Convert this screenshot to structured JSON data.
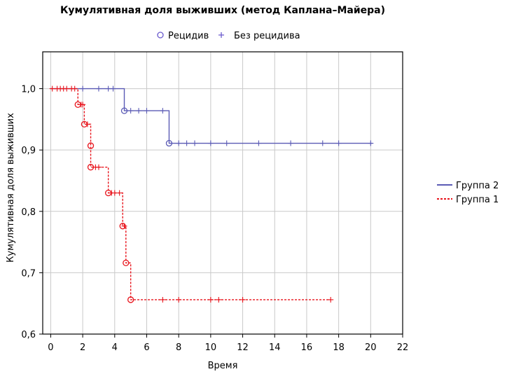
{
  "chart_data": {
    "type": "line",
    "step": true,
    "title": "Кумулятивная доля выживших (метод Каплана–Майера)",
    "xlabel": "Время",
    "ylabel": "Кумулятивная доля выживших",
    "xlim": [
      -0.5,
      22
    ],
    "ylim": [
      0.6,
      1.06
    ],
    "xticks": [
      0,
      2,
      4,
      6,
      8,
      10,
      12,
      14,
      16,
      18,
      20,
      22
    ],
    "xtick_labels": [
      "0",
      "2",
      "4",
      "6",
      "8",
      "10",
      "12",
      "14",
      "16",
      "18",
      "20",
      "22"
    ],
    "yticks": [
      0.6,
      0.7,
      0.8,
      0.9,
      1.0
    ],
    "ytick_labels": [
      "0,6",
      "0,7",
      "0,8",
      "0,9",
      "1,0"
    ],
    "grid": true,
    "marker_legend": {
      "position": "top",
      "items": [
        {
          "label": "Рецидив",
          "marker": "circle",
          "color": "#6a5acd"
        },
        {
          "label": "Без рецидива",
          "marker": "plus",
          "color": "#6a5acd"
        }
      ]
    },
    "series_legend_position": "right",
    "series": [
      {
        "name": "Группа 2",
        "color": "#5b5bb5",
        "dash": "solid",
        "steps": [
          [
            0,
            1.0
          ],
          [
            4.6,
            0.964
          ],
          [
            7.4,
            0.911
          ],
          [
            20.1,
            0.911
          ]
        ],
        "events": [
          [
            4.6,
            0.964
          ],
          [
            7.4,
            0.911
          ]
        ],
        "censored": [
          [
            2.0,
            1.0
          ],
          [
            3.0,
            1.0
          ],
          [
            3.6,
            1.0
          ],
          [
            3.9,
            1.0
          ],
          [
            5.0,
            0.964
          ],
          [
            5.5,
            0.964
          ],
          [
            6.0,
            0.964
          ],
          [
            7.0,
            0.964
          ],
          [
            8.0,
            0.911
          ],
          [
            8.5,
            0.911
          ],
          [
            9.0,
            0.911
          ],
          [
            10.0,
            0.911
          ],
          [
            11.0,
            0.911
          ],
          [
            13.0,
            0.911
          ],
          [
            15.0,
            0.911
          ],
          [
            17.0,
            0.911
          ],
          [
            18.0,
            0.911
          ],
          [
            20.0,
            0.911
          ]
        ]
      },
      {
        "name": "Группа 1",
        "color": "#e8141c",
        "dash": "dashed",
        "steps": [
          [
            0,
            1.0
          ],
          [
            1.7,
            0.974
          ],
          [
            2.1,
            0.942
          ],
          [
            2.5,
            0.907
          ],
          [
            2.5,
            0.872
          ],
          [
            3.6,
            0.83
          ],
          [
            4.5,
            0.776
          ],
          [
            4.7,
            0.716
          ],
          [
            5.0,
            0.656
          ],
          [
            17.5,
            0.656
          ]
        ],
        "events": [
          [
            1.7,
            0.974
          ],
          [
            2.1,
            0.942
          ],
          [
            2.5,
            0.907
          ],
          [
            2.5,
            0.872
          ],
          [
            3.6,
            0.83
          ],
          [
            4.5,
            0.776
          ],
          [
            4.7,
            0.716
          ],
          [
            5.0,
            0.656
          ]
        ],
        "censored": [
          [
            0.1,
            1.0
          ],
          [
            0.4,
            1.0
          ],
          [
            0.6,
            1.0
          ],
          [
            0.8,
            1.0
          ],
          [
            1.0,
            1.0
          ],
          [
            1.3,
            1.0
          ],
          [
            1.5,
            1.0
          ],
          [
            1.9,
            0.974
          ],
          [
            2.0,
            0.974
          ],
          [
            2.3,
            0.942
          ],
          [
            2.8,
            0.872
          ],
          [
            3.0,
            0.872
          ],
          [
            3.8,
            0.83
          ],
          [
            4.0,
            0.83
          ],
          [
            4.3,
            0.83
          ],
          [
            4.6,
            0.776
          ],
          [
            7.0,
            0.656
          ],
          [
            8.0,
            0.656
          ],
          [
            10.0,
            0.656
          ],
          [
            10.5,
            0.656
          ],
          [
            12.0,
            0.656
          ],
          [
            17.5,
            0.656
          ]
        ]
      }
    ]
  }
}
